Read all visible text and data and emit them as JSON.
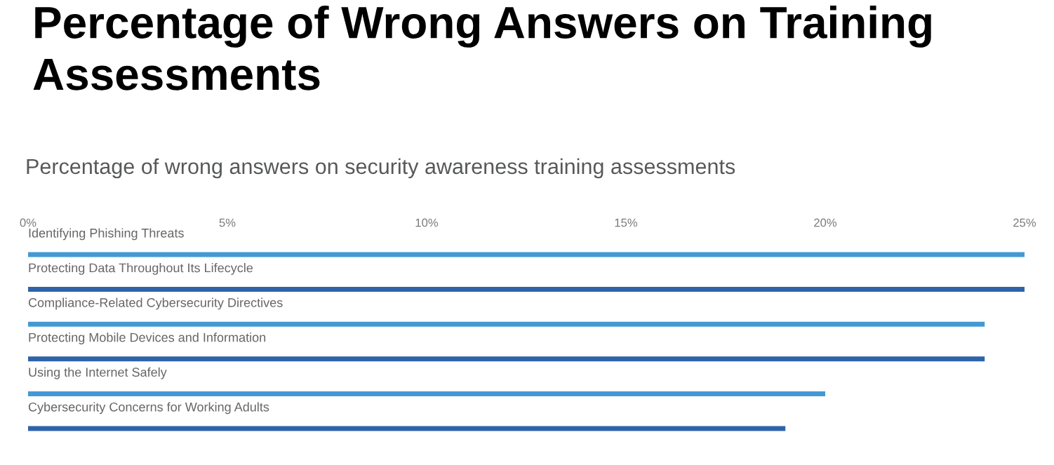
{
  "chart_data": {
    "type": "bar",
    "orientation": "horizontal",
    "title": "Percentage of Wrong Answers on Training Assessments",
    "subtitle": "Percentage of wrong answers on security awareness training assessments",
    "categories": [
      "Identifying Phishing Threats",
      "Protecting Data Throughout Its Lifecycle",
      "Compliance-Related Cybersecurity Directives",
      "Protecting Mobile Devices and Information",
      "Using the Internet Safely",
      "Cybersecurity Concerns for Working Adults"
    ],
    "values": [
      25,
      25,
      24,
      24,
      20,
      19
    ],
    "colors": [
      "#4499d3",
      "#2f63a8",
      "#4499d3",
      "#2f63a8",
      "#4499d3",
      "#2f63a8"
    ],
    "xlim": [
      0,
      25
    ],
    "xticks": [
      {
        "value": 0,
        "label": "0%"
      },
      {
        "value": 5,
        "label": "5%"
      },
      {
        "value": 10,
        "label": "10%"
      },
      {
        "value": 15,
        "label": "15%"
      },
      {
        "value": 20,
        "label": "20%"
      },
      {
        "value": 25,
        "label": "25%"
      }
    ]
  }
}
